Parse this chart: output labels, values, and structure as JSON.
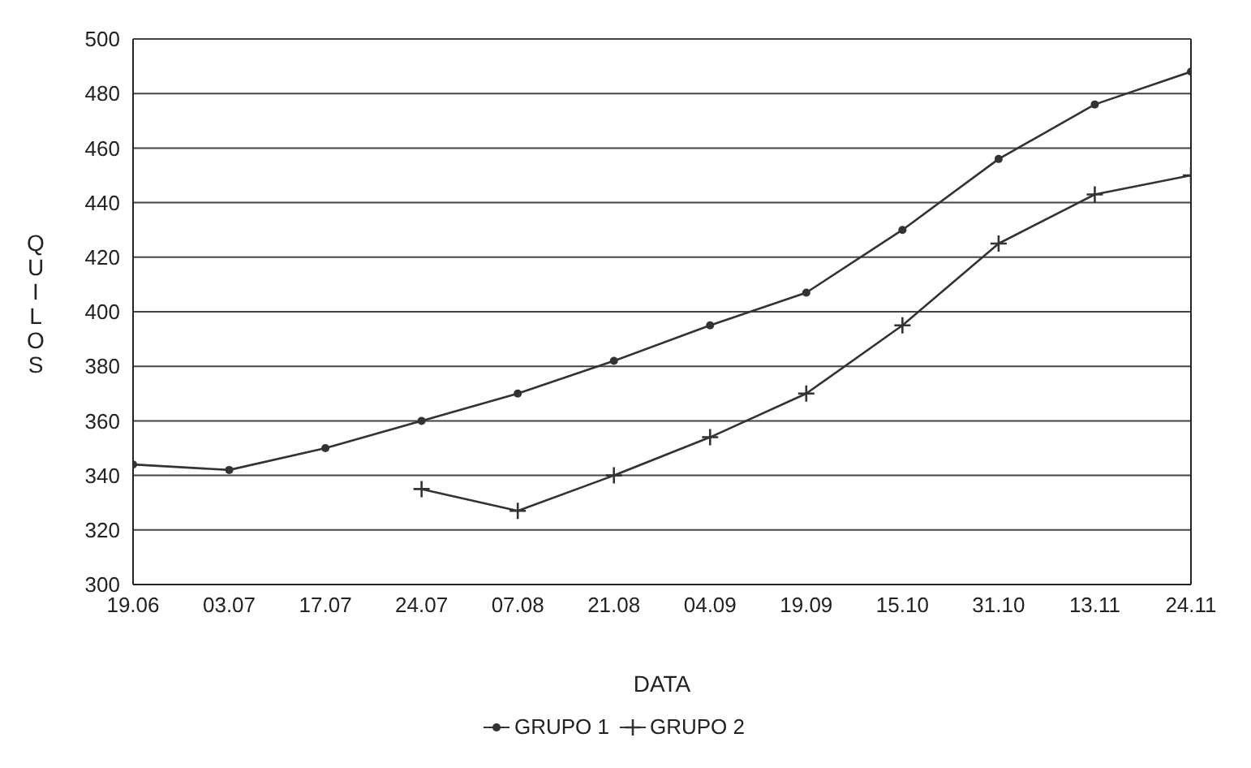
{
  "chart_data": {
    "type": "line",
    "xlabel": "DATA",
    "ylabel": "QUILOS",
    "categories": [
      "19.06",
      "03.07",
      "17.07",
      "24.07",
      "07.08",
      "21.08",
      "04.09",
      "19.09",
      "15.10",
      "31.10",
      "13.11",
      "24.11"
    ],
    "series": [
      {
        "name": "GRUPO 1",
        "color": "#333333",
        "marker": "circle",
        "values": [
          344,
          342,
          350,
          360,
          370,
          382,
          395,
          407,
          430,
          456,
          476,
          488
        ]
      },
      {
        "name": "GRUPO 2",
        "color": "#333333",
        "marker": "cross",
        "values": [
          null,
          null,
          null,
          335,
          327,
          340,
          354,
          370,
          395,
          425,
          443,
          450
        ]
      }
    ],
    "ylim": [
      300,
      500
    ],
    "yticks": [
      300,
      320,
      340,
      360,
      380,
      400,
      420,
      440,
      460,
      480,
      500
    ],
    "grid": "y",
    "legend": "bottom",
    "line_style": "solid"
  }
}
